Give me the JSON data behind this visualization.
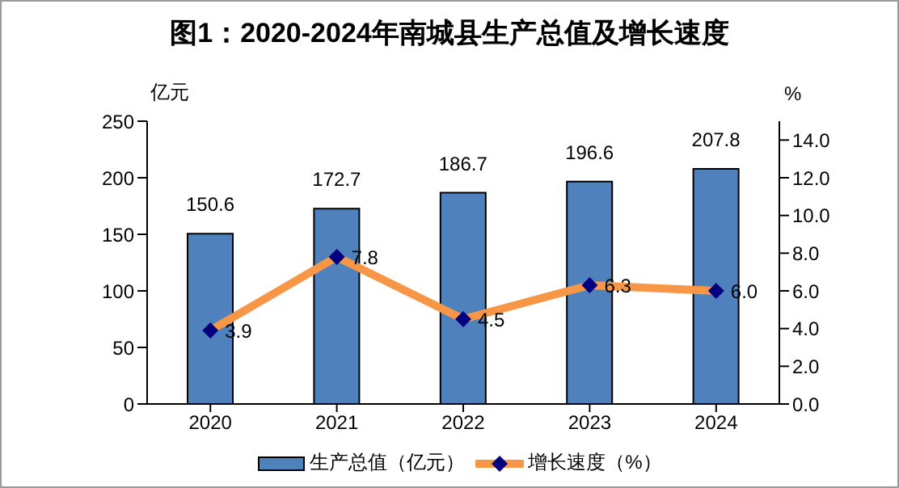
{
  "chart_data": {
    "type": "bar",
    "title": "图1：2020-2024年南城县生产总值及增长速度",
    "ylabel": "亿元",
    "y2label": "%",
    "categories": [
      "2020",
      "2021",
      "2022",
      "2023",
      "2024"
    ],
    "series": [
      {
        "name": "生产总值（亿元）",
        "color": "#4f81bd",
        "values": [
          150.6,
          172.7,
          186.7,
          196.6,
          207.8
        ],
        "value_labels": [
          "150.6",
          "172.7",
          "186.7",
          "196.6",
          "207.8"
        ]
      },
      {
        "name": "增长速度（%）",
        "type": "line",
        "axis": "y2",
        "color": "#f79646",
        "values": [
          3.9,
          7.8,
          4.5,
          6.3,
          6.0
        ],
        "value_labels": [
          "3.9",
          "7.8",
          "4.5",
          "6.3",
          "6.0"
        ]
      }
    ],
    "ylim": [
      0,
      250
    ],
    "yticks": [
      0,
      50,
      100,
      150,
      200,
      250
    ],
    "y2lim": [
      0,
      15
    ],
    "y2ticks": [
      {
        "value": 0,
        "label": "0.0"
      },
      {
        "value": 2,
        "label": "2.0"
      },
      {
        "value": 4,
        "label": "4.0"
      },
      {
        "value": 6,
        "label": "6.0"
      },
      {
        "value": 8,
        "label": "8.0"
      },
      {
        "value": 10,
        "label": "10.0"
      },
      {
        "value": 12,
        "label": "12.0"
      },
      {
        "value": 14,
        "label": "14.0"
      }
    ],
    "grid": false,
    "legend": "bottom",
    "marker": "diamond",
    "line_style": "solid"
  }
}
